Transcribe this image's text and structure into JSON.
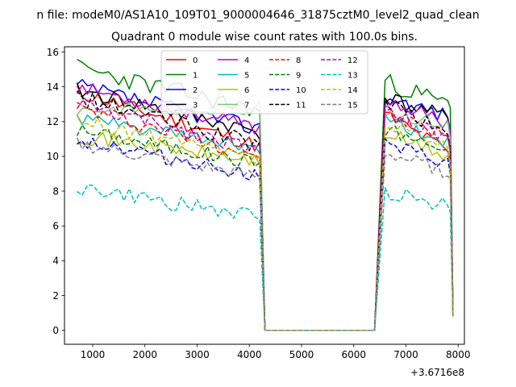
{
  "figure": {
    "suptitle": "n file: modeM0/AS1A10_109T01_9000004646_31875cztM0_level2_quad_clean",
    "offset_text": "+3.6716e8"
  },
  "chart_data": {
    "type": "line",
    "title": "Quadrant 0 module wise count rates with 100.0s bins.",
    "xlabel": "",
    "ylabel": "",
    "xlim": [
      460,
      8120
    ],
    "ylim": [
      -0.8,
      16.3
    ],
    "x_ticks": [
      1000,
      2000,
      3000,
      4000,
      5000,
      6000,
      7000,
      8000
    ],
    "y_ticks": [
      0,
      2,
      4,
      6,
      8,
      10,
      12,
      14,
      16
    ],
    "grid": false,
    "legend": {
      "placement": "top-center",
      "columns": 4
    },
    "segments": [
      {
        "x_start": 700,
        "x_end": 4200,
        "step": 100
      },
      {
        "x": [
          4300,
          4400,
          4500,
          4600,
          4700,
          4800,
          4900,
          5000,
          5100,
          5200,
          5300,
          5400,
          5500,
          5600,
          5700,
          5800,
          5900,
          6000,
          6100,
          6200,
          6300,
          6400
        ]
      },
      {
        "x_start": 6600,
        "x_end": 7800,
        "step": 100
      }
    ],
    "series": [
      {
        "name": "0",
        "color": "#ff0000",
        "dash": "solid",
        "seed": 11,
        "a": 13.7,
        "b": 10.6,
        "noise": 0.45,
        "c": 12.4,
        "d": 10.3,
        "edge": [
          9.8,
          1.2
        ]
      },
      {
        "name": "1",
        "color": "#008000",
        "dash": "solid",
        "seed": 23,
        "a": 15.1,
        "b": 12.6,
        "noise": 0.55,
        "c": 14.3,
        "d": 13.0,
        "edge": [
          12.8,
          1.0
        ]
      },
      {
        "name": "2",
        "color": "#0000ff",
        "dash": "solid",
        "seed": 37,
        "a": 14.0,
        "b": 11.6,
        "noise": 0.5,
        "c": 13.5,
        "d": 12.3,
        "edge": [
          11.5,
          0.9
        ]
      },
      {
        "name": "3",
        "color": "#000000",
        "dash": "solid",
        "seed": 41,
        "a": 13.8,
        "b": 11.4,
        "noise": 0.45,
        "c": 13.4,
        "d": 12.2,
        "edge": [
          11.0,
          0.8
        ]
      },
      {
        "name": "4",
        "color": "#bf00bf",
        "dash": "solid",
        "seed": 53,
        "a": 14.0,
        "b": 11.6,
        "noise": 0.4,
        "c": 13.3,
        "d": 11.9,
        "edge": [
          11.4,
          1.1
        ]
      },
      {
        "name": "5",
        "color": "#00bfbf",
        "dash": "solid",
        "seed": 61,
        "a": 12.2,
        "b": 10.4,
        "noise": 0.4,
        "c": 12.0,
        "d": 10.8,
        "edge": [
          10.2,
          0.9
        ]
      },
      {
        "name": "6",
        "color": "#bfbf00",
        "dash": "solid",
        "seed": 71,
        "a": 11.2,
        "b": 9.7,
        "noise": 0.45,
        "c": 11.3,
        "d": 10.0,
        "edge": [
          9.5,
          0.8
        ]
      },
      {
        "name": "7",
        "color": "#7fbf7f",
        "dash": "solid",
        "seed": 83,
        "a": 12.7,
        "b": 12.8,
        "noise": 0.4,
        "c": 12.6,
        "d": 11.8,
        "edge": [
          11.0,
          0.9
        ]
      },
      {
        "name": "8",
        "color": "#ff0000",
        "dash": "dashed",
        "seed": 97,
        "a": 12.8,
        "b": 10.1,
        "noise": 0.5,
        "c": 12.4,
        "d": 11.2,
        "edge": [
          10.3,
          1.0
        ]
      },
      {
        "name": "9",
        "color": "#008000",
        "dash": "dashed",
        "seed": 101,
        "a": 11.5,
        "b": 9.6,
        "noise": 0.45,
        "c": 11.6,
        "d": 10.3,
        "edge": [
          9.7,
          0.8
        ]
      },
      {
        "name": "10",
        "color": "#0000ff",
        "dash": "dashed",
        "seed": 113,
        "a": 11.0,
        "b": 8.9,
        "noise": 0.45,
        "c": 10.6,
        "d": 9.6,
        "edge": [
          9.0,
          0.9
        ]
      },
      {
        "name": "11",
        "color": "#000000",
        "dash": "dashed",
        "seed": 127,
        "a": 13.4,
        "b": 10.6,
        "noise": 0.5,
        "c": 13.2,
        "d": 11.2,
        "edge": [
          10.6,
          1.0
        ]
      },
      {
        "name": "12",
        "color": "#bf00bf",
        "dash": "dashed",
        "seed": 131,
        "a": 13.0,
        "b": 10.4,
        "noise": 0.45,
        "c": 12.6,
        "d": 11.0,
        "edge": [
          10.5,
          0.9
        ]
      },
      {
        "name": "13",
        "color": "#00bfbf",
        "dash": "dashed",
        "seed": 149,
        "a": 8.2,
        "b": 6.5,
        "noise": 0.45,
        "c": 8.0,
        "d": 7.2,
        "edge": [
          6.8,
          0.7
        ]
      },
      {
        "name": "14",
        "color": "#bfbf00",
        "dash": "dashed",
        "seed": 157,
        "a": 12.0,
        "b": 9.8,
        "noise": 0.45,
        "c": 11.8,
        "d": 10.4,
        "edge": [
          9.6,
          0.8
        ]
      },
      {
        "name": "15",
        "color": "#7f7f7f",
        "dash": "dashed",
        "seed": 163,
        "a": 10.7,
        "b": 8.8,
        "noise": 0.4,
        "c": 10.2,
        "d": 9.1,
        "edge": [
          8.7,
          0.8
        ]
      }
    ]
  }
}
